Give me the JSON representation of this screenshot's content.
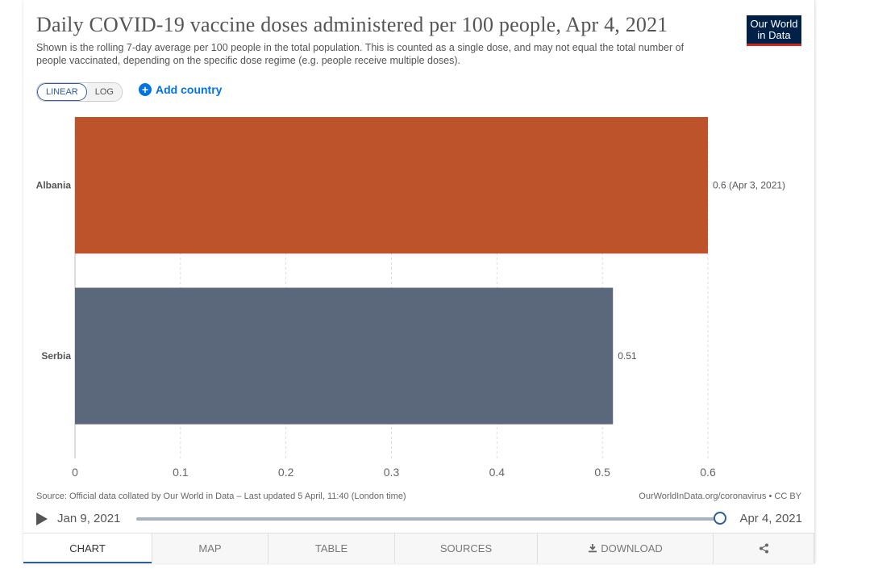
{
  "header": {
    "title": "Daily COVID-19 vaccine doses administered per 100 people, Apr 4, 2021",
    "subtitle": "Shown is the rolling 7-day average per 100 people in the total population. This is counted as a single dose, and may not equal the total number of people vaccinated, depending on the specific dose regime (e.g. people receive multiple doses).",
    "logo_line1": "Our World",
    "logo_line2": "in Data"
  },
  "controls": {
    "linear_label": "LINEAR",
    "log_label": "LOG",
    "active_scale": "linear",
    "add_country_label": "Add country"
  },
  "chart_data": {
    "type": "bar",
    "orientation": "horizontal",
    "categories": [
      "Albania",
      "Serbia"
    ],
    "values": [
      0.6,
      0.51
    ],
    "value_labels": [
      "0.6 (Apr 3, 2021)",
      "0.51"
    ],
    "colors": [
      "#bd532a",
      "#5b687c"
    ],
    "xlim": [
      0,
      0.6
    ],
    "ticks": [
      0,
      0.1,
      0.2,
      0.3,
      0.4,
      0.5,
      0.6
    ],
    "tick_labels": [
      "0",
      "0.1",
      "0.2",
      "0.3",
      "0.4",
      "0.5",
      "0.6"
    ],
    "grid": true
  },
  "footer": {
    "source": "Source: Official data collated by Our World in Data – Last updated 5 April, 11:40 (London time)",
    "site": "OurWorldInData.org/coronavirus • CC BY"
  },
  "timeline": {
    "start_date": "Jan 9, 2021",
    "end_date": "Apr 4, 2021",
    "position": 1.0
  },
  "tabs": [
    {
      "label": "CHART",
      "active": true
    },
    {
      "label": "MAP",
      "active": false
    },
    {
      "label": "TABLE",
      "active": false
    },
    {
      "label": "SOURCES",
      "active": false
    },
    {
      "label": "DOWNLOAD",
      "active": false,
      "icon": "download-icon"
    },
    {
      "label": "",
      "active": false,
      "icon": "share-icon"
    }
  ]
}
